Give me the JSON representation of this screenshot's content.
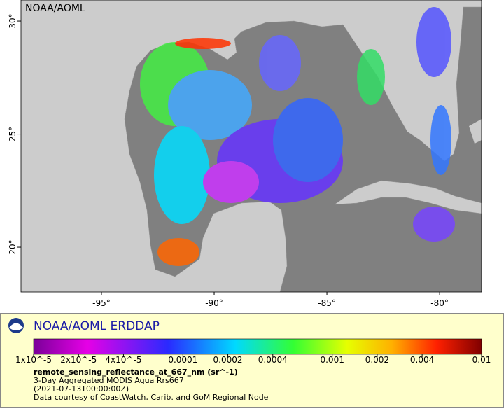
{
  "map": {
    "watermark": "NOAA/AOML",
    "xlim": [
      -98.57,
      -78.14
    ],
    "ylim": [
      18.02,
      30.93
    ],
    "xticks": [
      {
        "value": -95,
        "label": "-95°"
      },
      {
        "value": -90,
        "label": "-90°"
      },
      {
        "value": -85,
        "label": "-85°"
      },
      {
        "value": -80,
        "label": "-80°"
      }
    ],
    "yticks": [
      {
        "value": 20,
        "label": "20°"
      },
      {
        "value": 25,
        "label": "25°"
      },
      {
        "value": 30,
        "label": "30°"
      }
    ]
  },
  "header": {
    "title": "NOAA/AOML ERDDAP"
  },
  "colorbar": {
    "scale": "log",
    "lim": [
      1e-05,
      0.01
    ],
    "ticks": [
      {
        "value": 1e-05,
        "label": "1x10^-5"
      },
      {
        "value": 2e-05,
        "label": "2x10^-5"
      },
      {
        "value": 4e-05,
        "label": "4x10^-5"
      },
      0.0001,
      0.0002,
      0.0004,
      0.001,
      0.002,
      0.004,
      0.01
    ]
  },
  "legend": {
    "variable": "remote_sensing_reflectance_at_667_nm (sr^-1)",
    "dataset": "3-Day Aggregated MODIS Aqua Rrs667",
    "time": "(2021-07-13T00:00:00Z)",
    "credit": "Data courtesy of CoastWatch, Carib. and GoM Regional Node"
  }
}
